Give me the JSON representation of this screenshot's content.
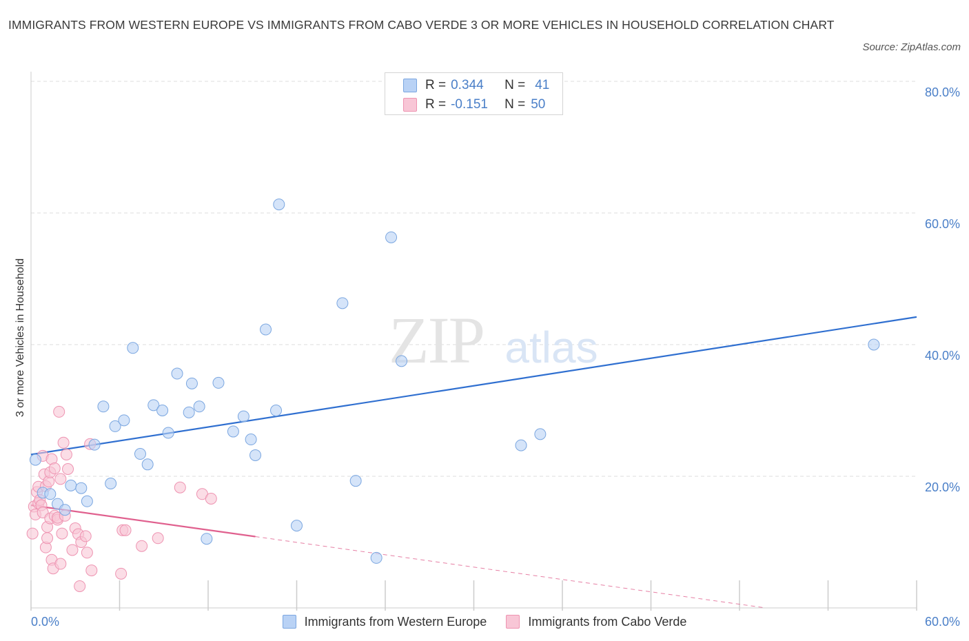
{
  "title": "IMMIGRANTS FROM WESTERN EUROPE VS IMMIGRANTS FROM CABO VERDE 3 OR MORE VEHICLES IN HOUSEHOLD CORRELATION CHART",
  "source": "Source: ZipAtlas.com",
  "watermark": {
    "zip": "ZIP",
    "atlas": "atlas"
  },
  "legend": {
    "rows": [
      {
        "r_label": "R =",
        "r_value": "0.344",
        "n_label": "N =",
        "n_value": "41"
      },
      {
        "r_label": "R =",
        "r_value": "-0.151",
        "n_label": "N =",
        "n_value": "50"
      }
    ]
  },
  "colors": {
    "blue_fill": "#b9d2f5",
    "blue_stroke": "#7aa6e0",
    "blue_line": "#2f6fd0",
    "pink_fill": "#f8c6d6",
    "pink_stroke": "#ee93b1",
    "pink_line": "#e0608e",
    "tick_label": "#4a7fc8",
    "grid": "#dddddd"
  },
  "chart_data": {
    "type": "scatter",
    "title": "IMMIGRANTS FROM WESTERN EUROPE VS IMMIGRANTS FROM CABO VERDE 3 OR MORE VEHICLES IN HOUSEHOLD CORRELATION CHART",
    "xlabel": "",
    "ylabel": "3 or more Vehicles in Household",
    "xlim": [
      0,
      60
    ],
    "ylim": [
      0,
      80
    ],
    "x_tick_labels": [
      {
        "value": 0,
        "label": "0.0%"
      },
      {
        "value": 60,
        "label": "60.0%"
      }
    ],
    "y_tick_labels": [
      {
        "value": 20,
        "label": "20.0%"
      },
      {
        "value": 40,
        "label": "40.0%"
      },
      {
        "value": 60,
        "label": "60.0%"
      },
      {
        "value": 80,
        "label": "80.0%"
      }
    ],
    "grid": true,
    "legend_position": "top-center",
    "series": [
      {
        "name": "Immigrants from Western Europe",
        "color": "#b9d2f5",
        "R": 0.344,
        "N": 41,
        "trend": {
          "x0": 0,
          "y0": 23.3,
          "x1": 60,
          "y1": 44.2,
          "dashed_from": null
        },
        "points": [
          [
            0.3,
            22.5
          ],
          [
            0.8,
            17.5
          ],
          [
            1.3,
            17.3
          ],
          [
            1.8,
            15.8
          ],
          [
            2.3,
            14.9
          ],
          [
            2.7,
            18.6
          ],
          [
            3.4,
            18.2
          ],
          [
            3.8,
            16.2
          ],
          [
            4.3,
            24.8
          ],
          [
            4.9,
            30.6
          ],
          [
            5.4,
            18.9
          ],
          [
            5.7,
            27.6
          ],
          [
            6.3,
            28.5
          ],
          [
            6.9,
            39.5
          ],
          [
            7.4,
            23.4
          ],
          [
            7.9,
            21.8
          ],
          [
            8.3,
            30.8
          ],
          [
            8.9,
            30.0
          ],
          [
            9.3,
            26.6
          ],
          [
            9.9,
            35.6
          ],
          [
            10.7,
            29.7
          ],
          [
            10.9,
            34.1
          ],
          [
            11.4,
            30.6
          ],
          [
            11.9,
            10.5
          ],
          [
            12.7,
            34.2
          ],
          [
            13.7,
            26.8
          ],
          [
            14.4,
            29.1
          ],
          [
            14.9,
            25.6
          ],
          [
            15.2,
            23.2
          ],
          [
            15.9,
            42.3
          ],
          [
            16.6,
            30.0
          ],
          [
            16.8,
            61.3
          ],
          [
            18.0,
            12.5
          ],
          [
            21.1,
            46.3
          ],
          [
            22.0,
            19.3
          ],
          [
            23.4,
            7.6
          ],
          [
            24.4,
            56.3
          ],
          [
            25.1,
            37.5
          ],
          [
            33.2,
            24.7
          ],
          [
            34.5,
            26.4
          ],
          [
            57.1,
            40.0
          ]
        ]
      },
      {
        "name": "Immigrants from Cabo Verde",
        "color": "#f8c6d6",
        "R": -0.151,
        "N": 50,
        "trend": {
          "x0": 0,
          "y0": 15.6,
          "x1": 60,
          "y1": -3.2,
          "dashed_from": 15.2
        },
        "points": [
          [
            0.1,
            11.3
          ],
          [
            0.2,
            15.4
          ],
          [
            0.3,
            14.2
          ],
          [
            0.4,
            17.6
          ],
          [
            0.5,
            18.4
          ],
          [
            0.5,
            15.9
          ],
          [
            0.6,
            16.4
          ],
          [
            0.7,
            15.6
          ],
          [
            0.8,
            23.1
          ],
          [
            0.8,
            14.5
          ],
          [
            0.9,
            20.3
          ],
          [
            1.0,
            9.2
          ],
          [
            1.0,
            18.5
          ],
          [
            1.1,
            10.6
          ],
          [
            1.1,
            12.3
          ],
          [
            1.2,
            19.2
          ],
          [
            1.3,
            13.6
          ],
          [
            1.3,
            20.6
          ],
          [
            1.4,
            22.6
          ],
          [
            1.4,
            7.3
          ],
          [
            1.5,
            6.0
          ],
          [
            1.6,
            21.2
          ],
          [
            1.6,
            14.0
          ],
          [
            1.8,
            13.4
          ],
          [
            1.8,
            13.7
          ],
          [
            1.9,
            29.8
          ],
          [
            2.0,
            19.6
          ],
          [
            2.0,
            6.7
          ],
          [
            2.1,
            11.3
          ],
          [
            2.2,
            25.1
          ],
          [
            2.3,
            14.0
          ],
          [
            2.4,
            23.3
          ],
          [
            2.5,
            21.1
          ],
          [
            2.8,
            8.8
          ],
          [
            3.0,
            12.1
          ],
          [
            3.2,
            11.2
          ],
          [
            3.3,
            3.3
          ],
          [
            3.4,
            10.0
          ],
          [
            3.7,
            10.9
          ],
          [
            3.8,
            8.4
          ],
          [
            4.0,
            24.9
          ],
          [
            4.1,
            5.7
          ],
          [
            6.1,
            5.2
          ],
          [
            6.2,
            11.8
          ],
          [
            6.4,
            11.8
          ],
          [
            7.5,
            9.4
          ],
          [
            8.6,
            10.6
          ],
          [
            10.1,
            18.3
          ],
          [
            11.6,
            17.3
          ],
          [
            12.2,
            16.6
          ]
        ]
      }
    ]
  }
}
